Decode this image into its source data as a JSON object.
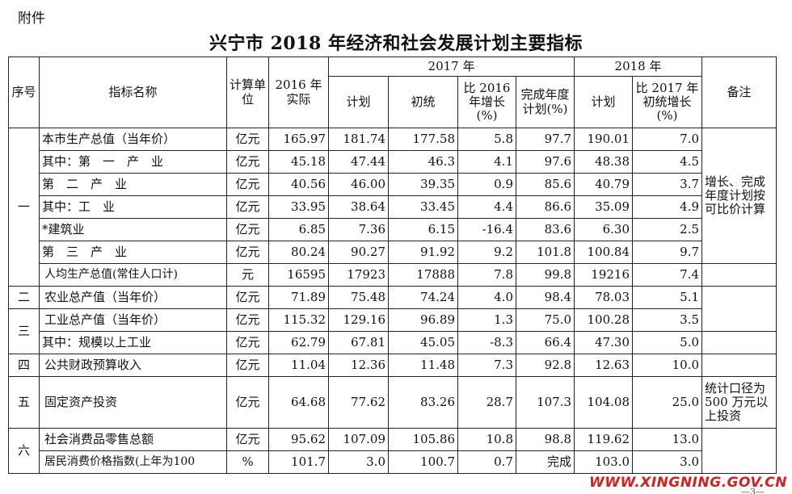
{
  "header": {
    "annex_label": "附件",
    "title": "兴宁市 2018 年经济和社会发展计划主要指标"
  },
  "table": {
    "headers": {
      "seq": "序号",
      "name": "指标名称",
      "unit": "计算单位",
      "actual_2016": "2016 年实际",
      "group_2017": "2017 年",
      "plan_2017": "计划",
      "prelim_2017": "初统",
      "growth_vs_2016": "比 2016 年增长(%)",
      "completion": "完成年度计划(%)",
      "group_2018": "2018 年",
      "plan_2018": "计划",
      "growth_vs_2017": "比 2017 年初统增长(%)",
      "remark": "备注"
    },
    "rows": [
      {
        "seq": "一",
        "name": "本市生产总值（当年价）",
        "unit": "亿元",
        "v2016": "165.97",
        "plan2017": "181.74",
        "prelim2017": "177.58",
        "g2016": "5.8",
        "comp": "97.7",
        "plan2018": "190.01",
        "g2017": "7.0"
      },
      {
        "seq": "",
        "name": "其中：第　一　产　业",
        "unit": "亿元",
        "v2016": "45.18",
        "plan2017": "47.44",
        "prelim2017": "46.3",
        "g2016": "4.1",
        "comp": "97.6",
        "plan2018": "48.38",
        "g2017": "4.5"
      },
      {
        "seq": "",
        "name": "第　二　产　业",
        "unit": "亿元",
        "v2016": "40.56",
        "plan2017": "46.00",
        "prelim2017": "39.35",
        "g2016": "0.9",
        "comp": "85.6",
        "plan2018": "40.79",
        "g2017": "3.7"
      },
      {
        "seq": "",
        "name": "其中：工　业",
        "unit": "亿元",
        "v2016": "33.95",
        "plan2017": "38.64",
        "prelim2017": "33.45",
        "g2016": "4.4",
        "comp": "86.6",
        "plan2018": "35.09",
        "g2017": "4.9"
      },
      {
        "seq": "",
        "name": "*建筑业",
        "unit": "亿元",
        "v2016": "6.85",
        "plan2017": "7.36",
        "prelim2017": "6.15",
        "g2016": "-16.4",
        "comp": "83.6",
        "plan2018": "6.30",
        "g2017": "2.5"
      },
      {
        "seq": "",
        "name": "第　三　产　业",
        "unit": "亿元",
        "v2016": "80.24",
        "plan2017": "90.27",
        "prelim2017": "91.92",
        "g2016": "9.2",
        "comp": "101.8",
        "plan2018": "100.84",
        "g2017": "9.7"
      },
      {
        "seq": "",
        "name": "人均生产总值(常住人口计)",
        "unit": "元",
        "v2016": "16595",
        "plan2017": "17923",
        "prelim2017": "17888",
        "g2016": "7.8",
        "comp": "99.8",
        "plan2018": "19216",
        "g2017": "7.4"
      },
      {
        "seq": "二",
        "name": "农业总产值（当年价）",
        "unit": "亿元",
        "v2016": "71.89",
        "plan2017": "75.48",
        "prelim2017": "74.24",
        "g2016": "4.0",
        "comp": "98.4",
        "plan2018": "78.03",
        "g2017": "5.1"
      },
      {
        "seq": "三",
        "name": "工业总产值（当年价）",
        "unit": "亿元",
        "v2016": "115.32",
        "plan2017": "129.16",
        "prelim2017": "96.89",
        "g2016": "1.3",
        "comp": "75.0",
        "plan2018": "100.28",
        "g2017": "3.5"
      },
      {
        "seq": "",
        "name": "其中：规模以上工业",
        "unit": "亿元",
        "v2016": "62.79",
        "plan2017": "67.81",
        "prelim2017": "45.05",
        "g2016": "-8.3",
        "comp": "66.4",
        "plan2018": "47.30",
        "g2017": "5.0"
      },
      {
        "seq": "四",
        "name": "公共财政预算收入",
        "unit": "亿元",
        "v2016": "11.04",
        "plan2017": "12.36",
        "prelim2017": "11.48",
        "g2016": "7.3",
        "comp": "92.8",
        "plan2018": "12.63",
        "g2017": "10.0"
      },
      {
        "seq": "五",
        "name": "固定资产投资",
        "unit": "亿元",
        "v2016": "64.68",
        "plan2017": "77.62",
        "prelim2017": "83.26",
        "g2016": "28.7",
        "comp": "107.3",
        "plan2018": "104.08",
        "g2017": "25.0"
      },
      {
        "seq": "六",
        "name": "社会消费品零售总额",
        "unit": "亿元",
        "v2016": "95.62",
        "plan2017": "107.09",
        "prelim2017": "105.86",
        "g2016": "10.8",
        "comp": "98.8",
        "plan2018": "119.62",
        "g2017": "13.0"
      },
      {
        "seq": "",
        "name": "居民消费价格指数(上年为100",
        "unit": "%",
        "v2016": "101.7",
        "plan2017": "3.0",
        "prelim2017": "100.7",
        "g2016": "0.7",
        "comp": "完成",
        "plan2018": "103.0",
        "g2017": "3.0"
      }
    ],
    "remarks": {
      "gdp_note": "增长、完成年度计划按可比价计算",
      "investment_note": "统计口径为 500 万元以上投资"
    }
  },
  "footer": {
    "watermark": "WWW.XINGNING.GOV.CN",
    "page_number": "—3—"
  }
}
